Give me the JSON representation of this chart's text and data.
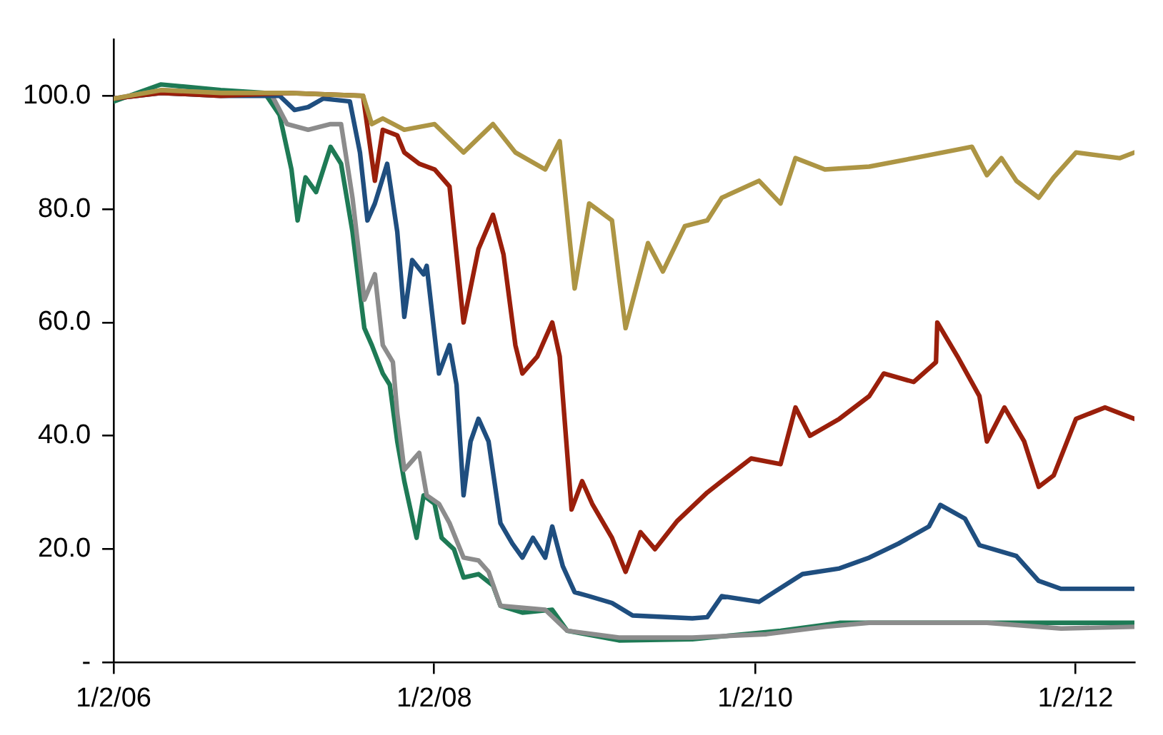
{
  "chart_data": {
    "type": "line",
    "xlim": [
      "2006-01-02",
      "2012-05-15"
    ],
    "xticks": [
      {
        "value": "2006-01-02",
        "label": "1/2/06"
      },
      {
        "value": "2008-01-02",
        "label": "1/2/08"
      },
      {
        "value": "2010-01-02",
        "label": "1/2/10"
      },
      {
        "value": "2012-01-02",
        "label": "1/2/12"
      }
    ],
    "ylim": [
      0,
      110
    ],
    "yticks": [
      {
        "value": 0,
        "label": "-"
      },
      {
        "value": 20,
        "label": "20.0"
      },
      {
        "value": 40,
        "label": "40.0"
      },
      {
        "value": 60,
        "label": "60.0"
      },
      {
        "value": 80,
        "label": "80.0"
      },
      {
        "value": 100,
        "label": "100.0"
      }
    ],
    "grid": false,
    "legend": false,
    "marker": "none",
    "line_style": "solid",
    "series": [
      {
        "color": "#ad9544",
        "x": [
          "2006-01-02",
          "2006-04-20",
          "2006-09-03",
          "2007-02-01",
          "2007-07-24",
          "2007-08-13",
          "2007-09-07",
          "2007-10-26",
          "2008-01-03",
          "2008-03-09",
          "2008-05-15",
          "2008-07-05",
          "2008-09-11",
          "2008-10-14",
          "2008-11-17",
          "2008-12-20",
          "2009-02-10",
          "2009-02-26",
          "2009-03-13",
          "2009-05-03",
          "2009-06-06",
          "2009-07-26",
          "2009-09-15",
          "2009-10-18",
          "2010-01-11",
          "2010-03-01",
          "2010-04-04",
          "2010-06-10",
          "2010-09-19",
          "2010-12-29",
          "2011-04-08",
          "2011-05-11",
          "2011-06-14",
          "2011-07-17",
          "2011-08-20",
          "2011-10-10",
          "2011-11-13",
          "2012-01-03",
          "2012-04-12",
          "2012-05-15"
        ],
        "values": [
          99.5,
          101,
          100.5,
          100.5,
          100,
          95,
          96,
          94,
          95,
          90,
          95,
          90,
          87,
          92,
          66,
          81,
          78,
          68,
          59,
          74,
          69,
          77,
          78,
          82,
          85,
          81,
          89,
          87,
          87.5,
          89,
          90.5,
          91,
          86,
          89,
          85,
          82,
          85.6,
          90,
          89,
          90
        ]
      },
      {
        "color": "#9a1f0b",
        "x": [
          "2006-01-02",
          "2006-04-20",
          "2006-09-03",
          "2007-02-01",
          "2007-07-24",
          "2007-08-20",
          "2007-09-07",
          "2007-10-10",
          "2007-10-26",
          "2007-11-29",
          "2008-01-03",
          "2008-02-06",
          "2008-03-09",
          "2008-04-12",
          "2008-05-15",
          "2008-06-08",
          "2008-07-05",
          "2008-07-21",
          "2008-08-24",
          "2008-09-27",
          "2008-10-14",
          "2008-11-10",
          "2008-12-04",
          "2008-12-27",
          "2009-02-10",
          "2009-03-13",
          "2009-04-16",
          "2009-05-19",
          "2009-07-09",
          "2009-09-15",
          "2009-10-18",
          "2009-12-24",
          "2010-03-01",
          "2010-04-04",
          "2010-05-07",
          "2010-07-13",
          "2010-09-19",
          "2010-10-22",
          "2010-12-29",
          "2011-02-18",
          "2011-02-21",
          "2011-04-08",
          "2011-05-28",
          "2011-06-14",
          "2011-07-24",
          "2011-09-07",
          "2011-10-10",
          "2011-11-13",
          "2012-01-03",
          "2012-03-09",
          "2012-05-15"
        ],
        "values": [
          99.5,
          100.5,
          100,
          100.5,
          100,
          85,
          94,
          93,
          90,
          88,
          87,
          84,
          60,
          73,
          79,
          72,
          56,
          51,
          54,
          60,
          54,
          27,
          32,
          28,
          22,
          16,
          23,
          20,
          25,
          30,
          32,
          36,
          35,
          45,
          40,
          43,
          47,
          51,
          49.5,
          53,
          60,
          54,
          47,
          39,
          45,
          39,
          31,
          33,
          43,
          45,
          43
        ]
      },
      {
        "color": "#1f4e7f",
        "x": [
          "2006-01-02",
          "2006-04-20",
          "2006-09-03",
          "2007-01-15",
          "2007-02-18",
          "2007-03-21",
          "2007-04-24",
          "2007-06-24",
          "2007-07-17",
          "2007-08-03",
          "2007-08-20",
          "2007-09-17",
          "2007-10-10",
          "2007-10-26",
          "2007-11-13",
          "2007-12-09",
          "2007-12-16",
          "2008-01-13",
          "2008-02-06",
          "2008-02-22",
          "2008-03-09",
          "2008-03-25",
          "2008-04-12",
          "2008-05-05",
          "2008-06-01",
          "2008-06-28",
          "2008-07-21",
          "2008-08-14",
          "2008-09-11",
          "2008-09-27",
          "2008-10-21",
          "2008-11-17",
          "2008-12-20",
          "2009-02-10",
          "2009-03-29",
          "2009-08-12",
          "2009-09-15",
          "2009-10-18",
          "2010-01-11",
          "2010-02-14",
          "2010-04-20",
          "2010-07-13",
          "2010-09-19",
          "2010-11-25",
          "2011-02-02",
          "2011-02-28",
          "2011-04-25",
          "2011-05-28",
          "2011-08-20",
          "2011-10-10",
          "2011-11-30",
          "2012-05-15"
        ],
        "values": [
          99.5,
          100.5,
          100,
          100,
          97.5,
          98,
          99.5,
          99,
          90,
          78,
          81,
          88,
          76,
          61,
          71,
          68.5,
          70,
          51,
          56,
          49,
          29.5,
          39,
          43,
          39,
          24.6,
          21,
          18.5,
          22,
          18.5,
          24,
          17,
          12.4,
          11.7,
          10.5,
          8.3,
          7.8,
          8,
          11.7,
          10.7,
          12.4,
          15.6,
          16.6,
          18.5,
          21,
          24,
          27.8,
          25.4,
          20.7,
          18.8,
          14.4,
          13,
          13
        ]
      },
      {
        "color": "#8c8c8c",
        "x": [
          "2006-01-02",
          "2006-04-20",
          "2006-09-03",
          "2006-12-29",
          "2007-02-01",
          "2007-03-21",
          "2007-05-11",
          "2007-06-04",
          "2007-06-30",
          "2007-07-27",
          "2007-08-20",
          "2007-09-07",
          "2007-09-30",
          "2007-10-10",
          "2007-10-26",
          "2007-11-29",
          "2007-12-16",
          "2008-01-13",
          "2008-02-06",
          "2008-03-09",
          "2008-04-12",
          "2008-05-05",
          "2008-06-01",
          "2008-09-11",
          "2008-10-31",
          "2009-02-26",
          "2009-08-12",
          "2010-01-28",
          "2010-06-10",
          "2010-09-19",
          "2011-06-14",
          "2011-11-30",
          "2012-05-15"
        ],
        "values": [
          99.5,
          101,
          100.5,
          100,
          95,
          94,
          95,
          95,
          82,
          64,
          68.5,
          56,
          53,
          44,
          34,
          37,
          29.5,
          28,
          24.6,
          18.5,
          18,
          16,
          10,
          9.3,
          5.6,
          4.4,
          4.4,
          5,
          6.3,
          7,
          7,
          6,
          6.3
        ]
      },
      {
        "color": "#1e7a55",
        "x": [
          "2006-01-02",
          "2006-04-20",
          "2006-09-03",
          "2006-12-12",
          "2007-01-15",
          "2007-02-11",
          "2007-02-25",
          "2007-03-15",
          "2007-04-08",
          "2007-05-11",
          "2007-06-04",
          "2007-06-30",
          "2007-07-27",
          "2007-08-13",
          "2007-09-07",
          "2007-09-23",
          "2007-10-10",
          "2007-10-26",
          "2007-11-23",
          "2007-12-09",
          "2008-01-03",
          "2008-01-19",
          "2008-02-16",
          "2008-03-09",
          "2008-04-12",
          "2008-05-15",
          "2008-06-01",
          "2008-07-21",
          "2008-09-27",
          "2008-10-31",
          "2009-02-26",
          "2009-08-12",
          "2010-03-01",
          "2010-07-13",
          "2012-05-15"
        ],
        "values": [
          99,
          102,
          101,
          100.5,
          96.6,
          87,
          78,
          85.6,
          83,
          91,
          88,
          76,
          59,
          56,
          51,
          49,
          39,
          32,
          22,
          29.5,
          28,
          22,
          20,
          15,
          15.6,
          13.6,
          10,
          8.8,
          9.3,
          5.6,
          3.9,
          4.1,
          5.6,
          7,
          7
        ]
      }
    ]
  }
}
